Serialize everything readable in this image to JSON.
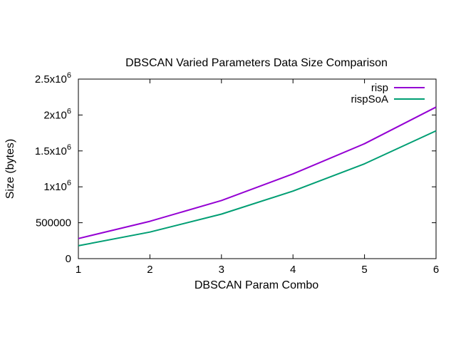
{
  "chart_data": {
    "type": "line",
    "title": "DBSCAN Varied Parameters Data Size Comparison",
    "xlabel": "DBSCAN Param Combo",
    "ylabel": "Size (bytes)",
    "x": [
      1,
      2,
      3,
      4,
      5,
      6
    ],
    "xlim": [
      1,
      6
    ],
    "ylim": [
      0,
      2500000
    ],
    "x_ticks": [
      {
        "value": 1,
        "label": "1"
      },
      {
        "value": 2,
        "label": "2"
      },
      {
        "value": 3,
        "label": "3"
      },
      {
        "value": 4,
        "label": "4"
      },
      {
        "value": 5,
        "label": "5"
      },
      {
        "value": 6,
        "label": "6"
      }
    ],
    "y_ticks": [
      {
        "value": 0,
        "label": "0"
      },
      {
        "value": 500000,
        "label": "500000"
      },
      {
        "value": 1000000,
        "label": "1x10",
        "exp": "6"
      },
      {
        "value": 1500000,
        "label": "1.5x10",
        "exp": "6"
      },
      {
        "value": 2000000,
        "label": "2x10",
        "exp": "6"
      },
      {
        "value": 2500000,
        "label": "2.5x10",
        "exp": "6"
      }
    ],
    "grid": false,
    "legend_position": "top-right",
    "series": [
      {
        "name": "risp",
        "color": "#9400d3",
        "values": [
          280000,
          520000,
          810000,
          1180000,
          1600000,
          2110000
        ]
      },
      {
        "name": "rispSoA",
        "color": "#009e73",
        "values": [
          180000,
          370000,
          620000,
          940000,
          1320000,
          1780000
        ]
      }
    ]
  }
}
